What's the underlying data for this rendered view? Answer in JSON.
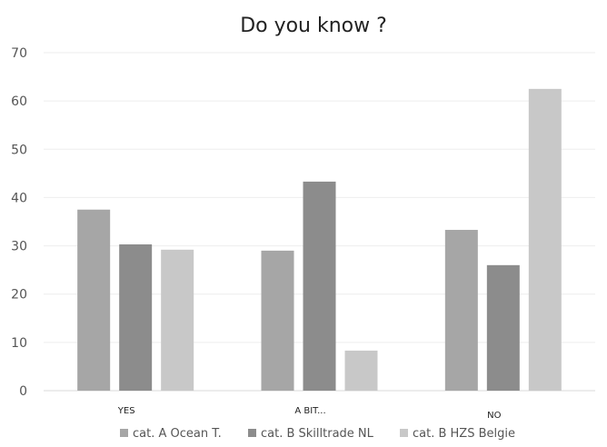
{
  "chart_data": {
    "type": "bar",
    "title": "Do you know ?",
    "xlabel": "",
    "ylabel": "",
    "categories": [
      "YES",
      "A BIT...",
      "NO"
    ],
    "series": [
      {
        "name": "cat. A Ocean T.",
        "color": "#a6a6a6",
        "values": [
          37.5,
          29,
          33.3
        ]
      },
      {
        "name": "cat. B Skilltrade NL",
        "color": "#8c8c8c",
        "values": [
          30.3,
          43.3,
          26
        ]
      },
      {
        "name": "cat. B HZS Belgie",
        "color": "#c8c8c8",
        "values": [
          29.2,
          8.3,
          62.5
        ]
      }
    ],
    "ylim": [
      0,
      70
    ],
    "yticks": [
      0,
      10,
      20,
      30,
      40,
      50,
      60,
      70
    ],
    "grid": true,
    "legend_position": "bottom"
  }
}
